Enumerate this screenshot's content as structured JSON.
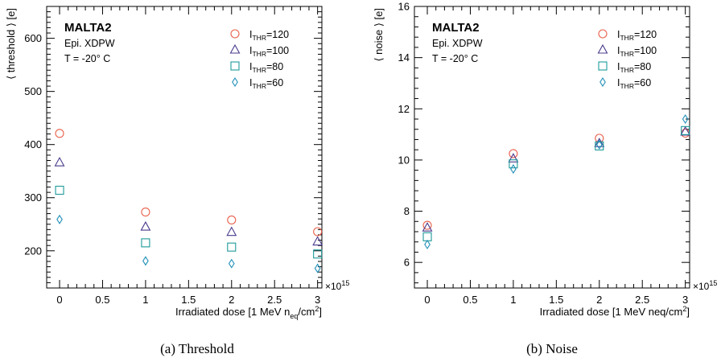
{
  "figure": {
    "captions": [
      "(a) Threshold",
      "(b) Noise"
    ]
  },
  "legend_entries": [
    {
      "label_main": "I",
      "label_sub": "THR",
      "label_tail": "=120",
      "marker": "circle",
      "color": "#e8604c"
    },
    {
      "label_main": "I",
      "label_sub": "THR",
      "label_tail": "=100",
      "marker": "triangle",
      "color": "#4a3a8c"
    },
    {
      "label_main": "I",
      "label_sub": "THR",
      "label_tail": "=80",
      "marker": "square",
      "color": "#1f9a9a"
    },
    {
      "label_main": "I",
      "label_sub": "THR",
      "label_tail": "=60",
      "marker": "diamond",
      "color": "#1f8fb8"
    }
  ],
  "chart_data": [
    {
      "type": "scatter",
      "title_lines": [
        "MALTA2",
        "Epi. XDPW",
        "T = -20° C"
      ],
      "ylabel": "⟨ threshold ⟩ [e]",
      "xlabel_parts": [
        "Irradiated dose [1 MeV n",
        "eq",
        "/cm",
        "2",
        "]"
      ],
      "x_exponent_base": "×10",
      "x_exponent_power": "15",
      "xlim": [
        -0.15,
        3.05
      ],
      "ylim": [
        130,
        660
      ],
      "xticks": [
        0,
        0.5,
        1,
        1.5,
        2,
        2.5,
        3
      ],
      "yticks": [
        200,
        300,
        400,
        500,
        600
      ],
      "x": [
        0,
        1,
        2,
        3
      ],
      "series": [
        {
          "name": "I_THR=120",
          "marker": "circle",
          "color": "#e8604c",
          "values": [
            421,
            273,
            258,
            236
          ]
        },
        {
          "name": "I_THR=100",
          "marker": "triangle",
          "color": "#4a3a8c",
          "values": [
            366,
            245,
            235,
            217
          ]
        },
        {
          "name": "I_THR=80",
          "marker": "square",
          "color": "#1f9a9a",
          "values": [
            314,
            215,
            207,
            194
          ]
        },
        {
          "name": "I_THR=60",
          "marker": "diamond",
          "color": "#1f8fb8",
          "values": [
            259,
            181,
            176,
            167
          ]
        }
      ]
    },
    {
      "type": "scatter",
      "title_lines": [
        "MALTA2",
        "Epi. XDPW",
        "T = -20° C"
      ],
      "ylabel": "⟨ noise ⟩ [e]",
      "xlabel_parts": [
        "Irradiated dose [1 MeV neq/cm",
        "2",
        "]"
      ],
      "x_exponent_base": "×10",
      "x_exponent_power": "15",
      "xlim": [
        -0.15,
        3.05
      ],
      "ylim": [
        5.0,
        16.0
      ],
      "xticks": [
        0,
        0.5,
        1,
        1.5,
        2,
        2.5,
        3
      ],
      "yticks": [
        6,
        8,
        10,
        12,
        14,
        16
      ],
      "x": [
        0,
        1,
        2,
        3
      ],
      "series": [
        {
          "name": "I_THR=120",
          "marker": "circle",
          "color": "#e8604c",
          "values": [
            7.45,
            10.25,
            10.85,
            11.05
          ]
        },
        {
          "name": "I_THR=100",
          "marker": "triangle",
          "color": "#4a3a8c",
          "values": [
            7.35,
            10.05,
            10.65,
            11.1
          ]
        },
        {
          "name": "I_THR=80",
          "marker": "square",
          "color": "#1f9a9a",
          "values": [
            7.0,
            9.85,
            10.55,
            11.15
          ]
        },
        {
          "name": "I_THR=60",
          "marker": "diamond",
          "color": "#1f8fb8",
          "values": [
            6.7,
            9.65,
            10.6,
            11.6
          ]
        }
      ]
    }
  ]
}
